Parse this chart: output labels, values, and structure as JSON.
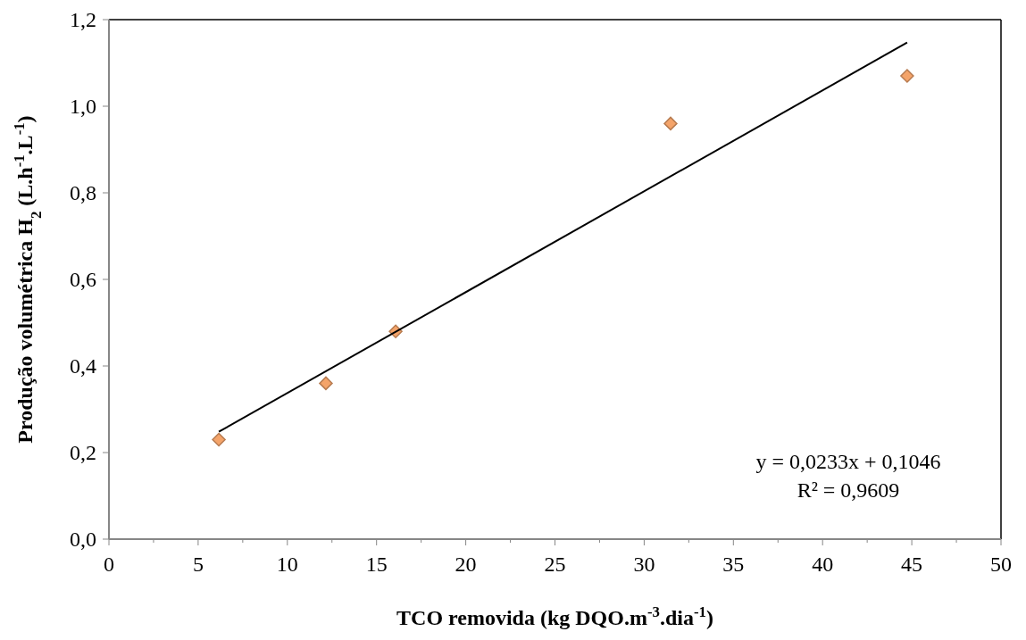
{
  "chart_data": {
    "type": "scatter",
    "xlabel": "TCO removida (kg DQO.m$^{-3}$.dia$^{-1}$)",
    "ylabel": "Produção volumétrica H$_{2}$ (L.h$^{-1}$.L$^{-1}$)",
    "xlim": [
      0,
      50
    ],
    "xticks": [
      0,
      {
        "value": 2.5,
        "label": null
      },
      5,
      {
        "value": 7.5,
        "label": null
      },
      10,
      {
        "value": 12.5,
        "label": null
      },
      15,
      {
        "value": 17.5,
        "label": null
      },
      20,
      {
        "value": 22.5,
        "label": null
      },
      25,
      {
        "value": 27.5,
        "label": null
      },
      30,
      {
        "value": 32.5,
        "label": null
      },
      35,
      {
        "value": 37.5,
        "label": null
      },
      40,
      {
        "value": 42.5,
        "label": null
      },
      45,
      {
        "value": 47.5,
        "label": null
      },
      50
    ],
    "ylim": [
      0,
      1.2
    ],
    "yticks": [
      {
        "value": 0,
        "label": "0,0"
      },
      {
        "value": 0.2,
        "label": "0,2"
      },
      {
        "value": 0.4,
        "label": "0,4"
      },
      {
        "value": 0.6,
        "label": "0,6"
      },
      {
        "value": 0.8,
        "label": "0,8"
      },
      {
        "value": 1.0,
        "label": "1,0"
      },
      {
        "value": 1.2,
        "label": "1,2"
      }
    ],
    "grid": false,
    "series": [
      {
        "color": "#f4a46a",
        "marker": "diamond",
        "x": [
          6.16,
          12.16,
          16.07,
          31.48,
          44.74
        ],
        "values": [
          0.23,
          0.36,
          0.48,
          0.96,
          1.07
        ]
      },
      {
        "type": "line",
        "color": "#000000",
        "marker": "none",
        "line_style": "solid",
        "x": [
          6.16,
          44.74
        ],
        "values": [
          0.248,
          1.147
        ]
      }
    ],
    "annotations": [
      "y = 0,0233x + 0,1046",
      "R² = 0,9609"
    ]
  }
}
